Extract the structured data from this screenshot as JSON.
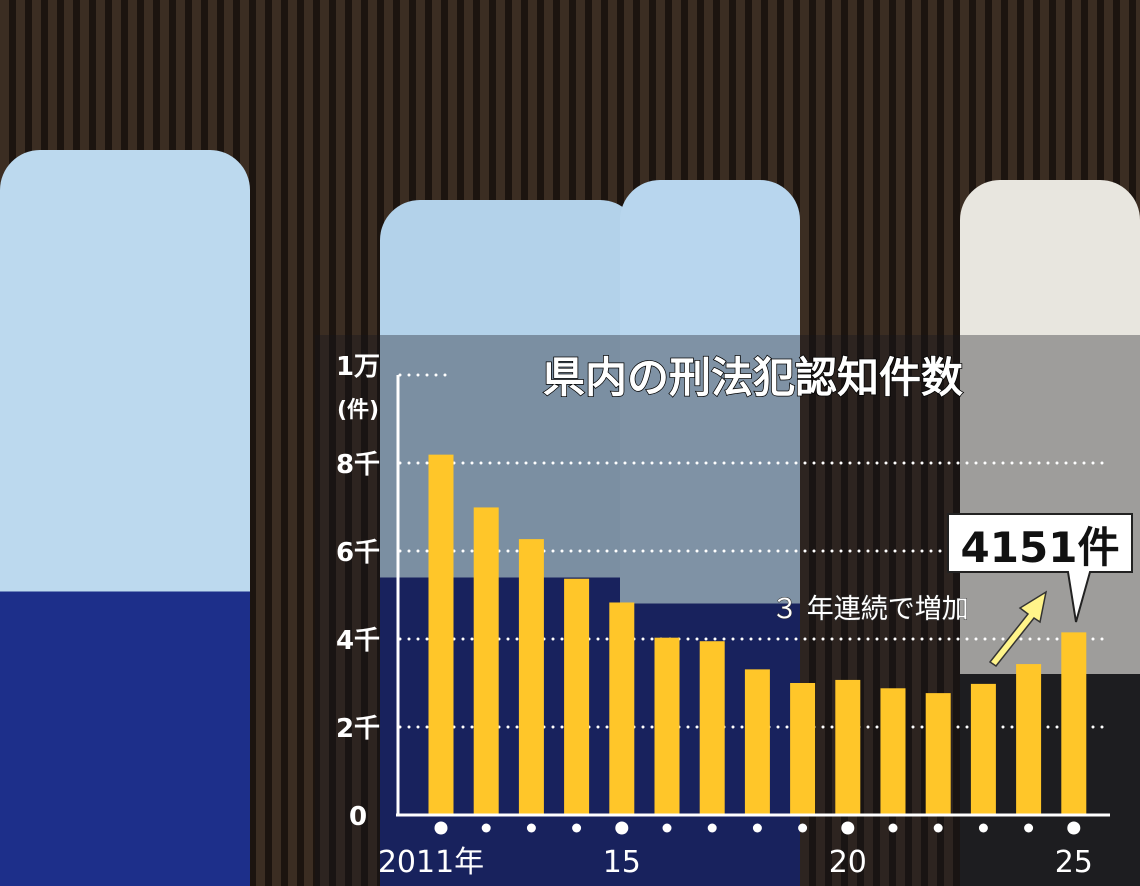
{
  "chart_data": {
    "type": "bar",
    "title": "県内の刑法犯認知件数",
    "ylabel": "(件)",
    "ylim": [
      0,
      10000
    ],
    "yticks": [
      {
        "value": 0,
        "label": "0"
      },
      {
        "value": 2000,
        "label": "2千"
      },
      {
        "value": 4000,
        "label": "4千"
      },
      {
        "value": 6000,
        "label": "6千"
      },
      {
        "value": 8000,
        "label": "8千"
      },
      {
        "value": 10000,
        "label": "1万"
      }
    ],
    "grid": true,
    "x": [
      2011,
      2012,
      2013,
      2014,
      2015,
      2016,
      2017,
      2018,
      2019,
      2020,
      2021,
      2022,
      2023,
      2024,
      2025
    ],
    "xtick_labels": [
      {
        "year": 2011,
        "label": "2011年"
      },
      {
        "year": 2015,
        "label": "15"
      },
      {
        "year": 2020,
        "label": "20"
      },
      {
        "year": 2025,
        "label": "25"
      }
    ],
    "values": [
      8190,
      6990,
      6270,
      5370,
      4830,
      4030,
      3950,
      3310,
      3000,
      3070,
      2880,
      2770,
      2980,
      3430,
      4151
    ],
    "bar_color": "#ffc629",
    "annotations": {
      "callout": "4151件",
      "trend_note": "３ 年連続で増加"
    }
  }
}
